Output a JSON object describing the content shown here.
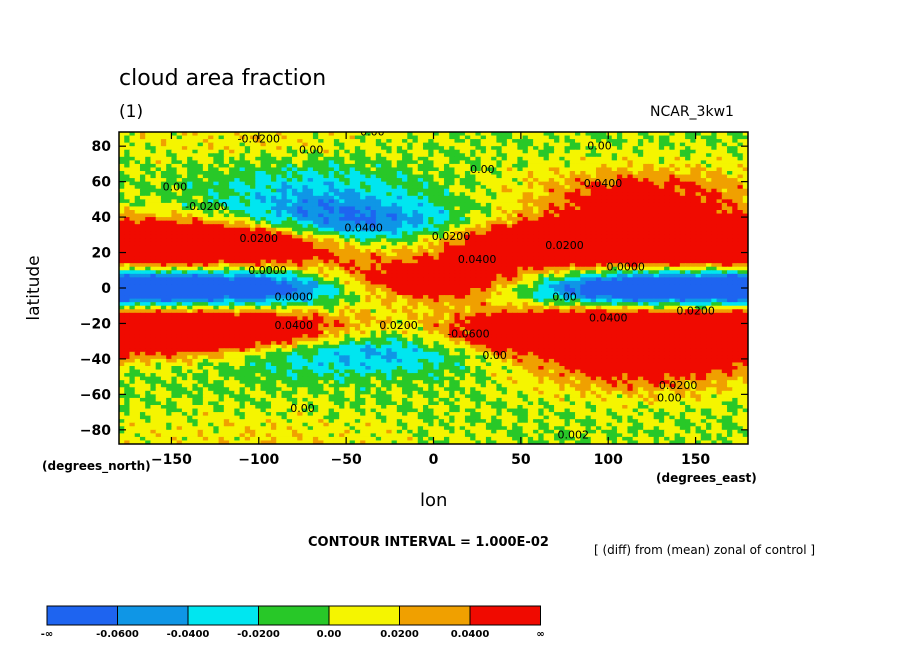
{
  "title": "cloud area fraction",
  "subtitle": "(1)",
  "model": "NCAR_3kw1",
  "contour_interval": "CONTOUR INTERVAL = 1.000E-02",
  "note": "[ (diff) from (mean) zonal of control ]",
  "colorbar": {
    "colors": [
      "#1e64f0",
      "#0f96e6",
      "#00e6f0",
      "#28c828",
      "#f5f500",
      "#f0a000",
      "#f00a00"
    ],
    "labels": [
      "-∞",
      "-0.0600",
      "-0.0400",
      "-0.0200",
      "0.00",
      "0.0200",
      "0.0400",
      "∞"
    ]
  },
  "chart_data": {
    "type": "heatmap",
    "title": "cloud area fraction",
    "subtitle": "(1)",
    "xlabel": "lon",
    "ylabel": "latitude",
    "x_unit_label": "(degrees_east)",
    "y_unit_label": "(degrees_north)",
    "xlim": [
      -180,
      180
    ],
    "ylim": [
      -88,
      88
    ],
    "x_ticks": [
      -150,
      -100,
      -50,
      0,
      50,
      100,
      150
    ],
    "x_tick_labels": [
      "−150",
      "−100",
      "−50",
      "0",
      "50",
      "100",
      "150"
    ],
    "y_ticks": [
      80,
      60,
      40,
      20,
      0,
      -20,
      -40,
      -60,
      -80
    ],
    "y_tick_labels": [
      "80",
      "60",
      "40",
      "20",
      "0",
      "−20",
      "−40",
      "−60",
      "−80"
    ],
    "levels": [
      -0.06,
      -0.04,
      -0.02,
      0.0,
      0.02,
      0.04
    ],
    "level_colors": [
      "#1e64f0",
      "#0f96e6",
      "#00e6f0",
      "#28c828",
      "#f5f500",
      "#f0a000",
      "#f00a00"
    ],
    "contour_labels": [
      {
        "lon": -100,
        "lat": 82,
        "text": "-0.0200"
      },
      {
        "lon": -35,
        "lat": 86,
        "text": "0.00"
      },
      {
        "lon": -70,
        "lat": 76,
        "text": "0.00"
      },
      {
        "lon": 95,
        "lat": 78,
        "text": "0.00"
      },
      {
        "lon": 28,
        "lat": 65,
        "text": "0.00"
      },
      {
        "lon": -148,
        "lat": 55,
        "text": "0.00"
      },
      {
        "lon": 97,
        "lat": 57,
        "text": "0.0400"
      },
      {
        "lon": -130,
        "lat": 44,
        "text": "-0.0200"
      },
      {
        "lon": -40,
        "lat": 32,
        "text": "0.0400"
      },
      {
        "lon": 10,
        "lat": 27,
        "text": "0.0200"
      },
      {
        "lon": -100,
        "lat": 26,
        "text": "0.0200"
      },
      {
        "lon": 75,
        "lat": 22,
        "text": "0.0200"
      },
      {
        "lon": 25,
        "lat": 14,
        "text": "0.0400"
      },
      {
        "lon": -95,
        "lat": 8,
        "text": "0.0000"
      },
      {
        "lon": 110,
        "lat": 10,
        "text": "0.0000"
      },
      {
        "lon": -80,
        "lat": -7,
        "text": "0.0000"
      },
      {
        "lon": 75,
        "lat": -7,
        "text": "0.00"
      },
      {
        "lon": -80,
        "lat": -23,
        "text": "0.0400"
      },
      {
        "lon": -20,
        "lat": -23,
        "text": "0.0200"
      },
      {
        "lon": 100,
        "lat": -19,
        "text": "0.0400"
      },
      {
        "lon": 150,
        "lat": -15,
        "text": "0.0200"
      },
      {
        "lon": 20,
        "lat": -28,
        "text": "-0.0600"
      },
      {
        "lon": 35,
        "lat": -40,
        "text": "0.00"
      },
      {
        "lon": 140,
        "lat": -57,
        "text": "0.0200"
      },
      {
        "lon": 135,
        "lat": -64,
        "text": "0.00"
      },
      {
        "lon": -75,
        "lat": -70,
        "text": "0.00"
      },
      {
        "lon": 80,
        "lat": -85,
        "text": "0.002"
      }
    ]
  }
}
